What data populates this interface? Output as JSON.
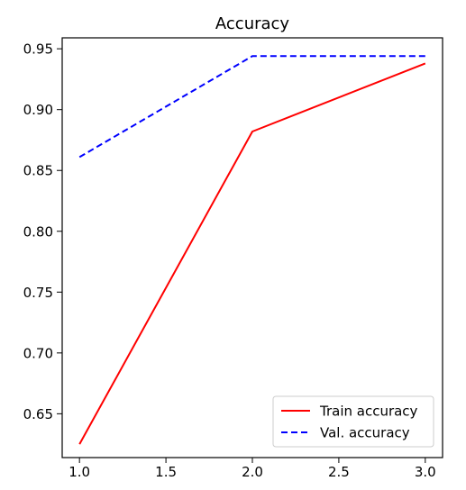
{
  "chart_data": {
    "type": "line",
    "title": "Accuracy",
    "xlabel": "",
    "ylabel": "",
    "xlim": [
      0.9,
      3.1
    ],
    "ylim": [
      0.614,
      0.959
    ],
    "xticks": [
      1.0,
      1.5,
      2.0,
      2.5,
      3.0
    ],
    "xtick_labels": [
      "1.0",
      "1.5",
      "2.0",
      "2.5",
      "3.0"
    ],
    "yticks": [
      0.65,
      0.7,
      0.75,
      0.8,
      0.85,
      0.9,
      0.95
    ],
    "ytick_labels": [
      "0.65",
      "0.70",
      "0.75",
      "0.80",
      "0.85",
      "0.90",
      "0.95"
    ],
    "grid": false,
    "legend_position": "lower-right",
    "x": [
      1.0,
      2.0,
      3.0
    ],
    "series": [
      {
        "name": "Train accuracy",
        "values": [
          0.625,
          0.882,
          0.938
        ],
        "color": "#ff0000",
        "style": "solid"
      },
      {
        "name": "Val. accuracy",
        "values": [
          0.861,
          0.944,
          0.944
        ],
        "color": "#0000ff",
        "style": "dashed"
      }
    ]
  }
}
